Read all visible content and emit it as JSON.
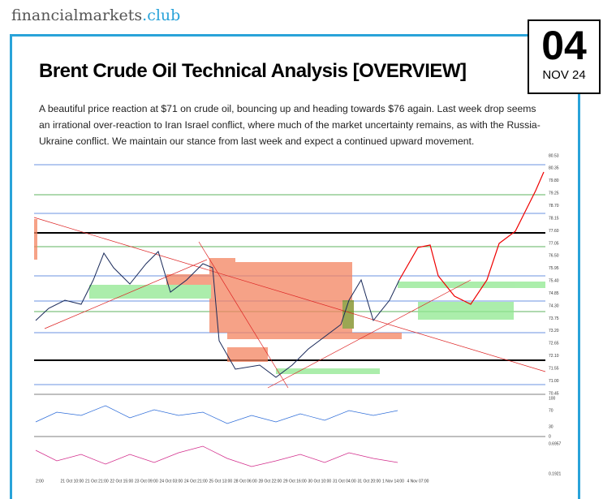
{
  "header": {
    "logo_text": "financialmarkets",
    "logo_suffix": ".club",
    "day": "04",
    "month": "NOV 24"
  },
  "article": {
    "title": "Brent Crude Oil Technical Analysis [OVERVIEW]",
    "body": "A beautiful price reaction at $71 on crude oil, bouncing up and heading towards $76 again. Last week drop seems an irrational over-reaction to Iran Israel conflict, where much of the market uncertainty remains, as with the Russia-Ukraine conflict. We maintain our stance from last week and expect a continued upward movement."
  },
  "chart": {
    "price_labels": [
      "80.53",
      "80.35",
      "79.80",
      "79.25",
      "78.70",
      "78.15",
      "77.60",
      "77.05",
      "76.50",
      "75.95",
      "75.40",
      "74.85",
      "74.30",
      "73.75",
      "73.20",
      "72.65",
      "72.10",
      "71.55",
      "71.00",
      "70.45"
    ],
    "time_labels": [
      "2:00",
      "21 Oct 10:00",
      "21 Oct 21:00",
      "22 Oct 15:00",
      "23 Oct 09:00",
      "24 Oct 03:00",
      "24 Oct 21:00",
      "25 Oct 13:00",
      "28 Oct 06:00",
      "28 Oct 22:00",
      "29 Oct 16:00",
      "30 Oct 10:00",
      "31 Oct 04:00",
      "31 Oct 20:00",
      "1 Nov 14:00",
      "4 Nov 07:00"
    ],
    "rsi_labels": [
      "100",
      "70",
      "30",
      "0"
    ],
    "osc_labels": [
      "0.6957",
      "0.1921"
    ]
  }
}
